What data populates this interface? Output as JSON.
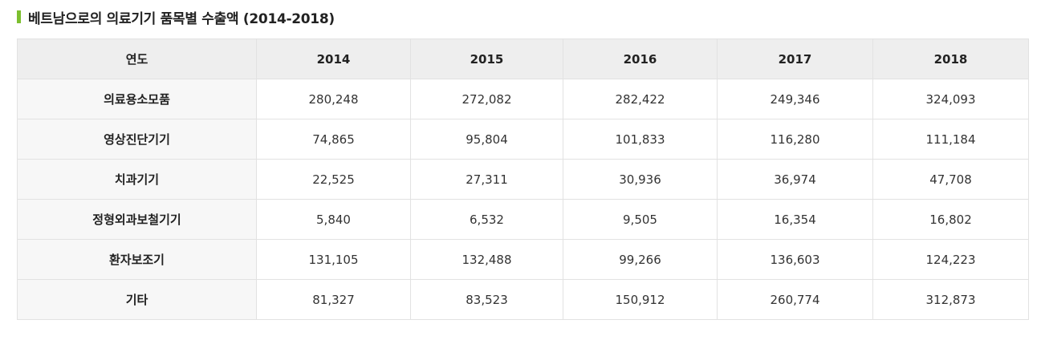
{
  "title": "베트남으로의 의료기기 품목별 수출액 (2014-2018)",
  "accent_color": "#7cbf2e",
  "table": {
    "header": [
      "연도",
      "2014",
      "2015",
      "2016",
      "2017",
      "2018"
    ],
    "rows": [
      {
        "label": "의료용소모품",
        "values": [
          "280,248",
          "272,082",
          "282,422",
          "249,346",
          "324,093"
        ]
      },
      {
        "label": "영상진단기기",
        "values": [
          "74,865",
          "95,804",
          "101,833",
          "116,280",
          "111,184"
        ]
      },
      {
        "label": "치과기기",
        "values": [
          "22,525",
          "27,311",
          "30,936",
          "36,974",
          "47,708"
        ]
      },
      {
        "label": "정형외과보철기기",
        "values": [
          "5,840",
          "6,532",
          "9,505",
          "16,354",
          "16,802"
        ]
      },
      {
        "label": "환자보조기",
        "values": [
          "131,105",
          "132,488",
          "99,266",
          "136,603",
          "124,223"
        ]
      },
      {
        "label": "기타",
        "values": [
          "81,327",
          "83,523",
          "150,912",
          "260,774",
          "312,873"
        ]
      }
    ]
  }
}
